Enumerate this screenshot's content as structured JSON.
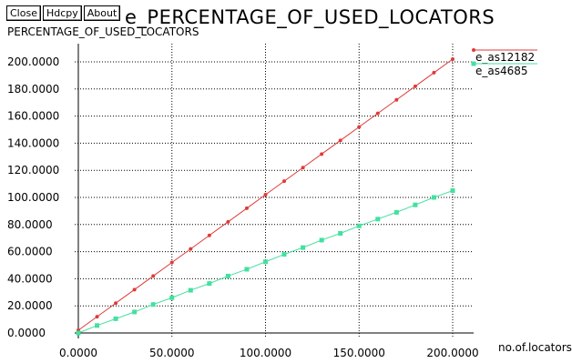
{
  "toolbar": {
    "close_label": "Close",
    "hdcpy_label": "Hdcpy",
    "about_label": "About"
  },
  "window_title": "e_PERCENTAGE_OF_USED_LOCATORS",
  "chart_data": {
    "type": "line",
    "title": "PERCENTAGE_OF_USED_LOCATORS",
    "xlabel": "no.of.locators",
    "ylabel": "",
    "xlim": [
      0,
      200
    ],
    "ylim": [
      0,
      200
    ],
    "grid": true,
    "legend_position": "top-right",
    "x_tick_labels": [
      "0.0000",
      "50.0000",
      "100.0000",
      "150.0000",
      "200.0000"
    ],
    "x_tick_values": [
      0,
      50,
      100,
      150,
      200
    ],
    "y_tick_labels": [
      "0.0000",
      "20.0000",
      "40.0000",
      "60.0000",
      "80.0000",
      "100.0000",
      "120.0000",
      "140.0000",
      "160.0000",
      "180.0000",
      "200.0000"
    ],
    "y_tick_values": [
      0,
      20,
      40,
      60,
      80,
      100,
      120,
      140,
      160,
      180,
      200
    ],
    "x": [
      0,
      10,
      20,
      30,
      40,
      50,
      60,
      70,
      80,
      90,
      100,
      110,
      120,
      130,
      140,
      150,
      160,
      170,
      180,
      190,
      200
    ],
    "series": [
      {
        "name": "e_as12182",
        "color": "#e03a3a",
        "marker": "dot",
        "values": [
          2,
          12,
          22,
          32,
          42,
          52,
          62,
          72,
          82,
          92,
          102,
          112,
          122,
          132,
          142,
          152,
          162,
          172,
          182,
          192,
          202
        ]
      },
      {
        "name": "e_as4685",
        "color": "#44e0a0",
        "marker": "square",
        "values": [
          0,
          5.5,
          10.5,
          15.5,
          21,
          26,
          31.5,
          36.5,
          42,
          47,
          52.5,
          58,
          63,
          68.5,
          73.5,
          79,
          84,
          89,
          94.5,
          100,
          105
        ]
      }
    ]
  }
}
